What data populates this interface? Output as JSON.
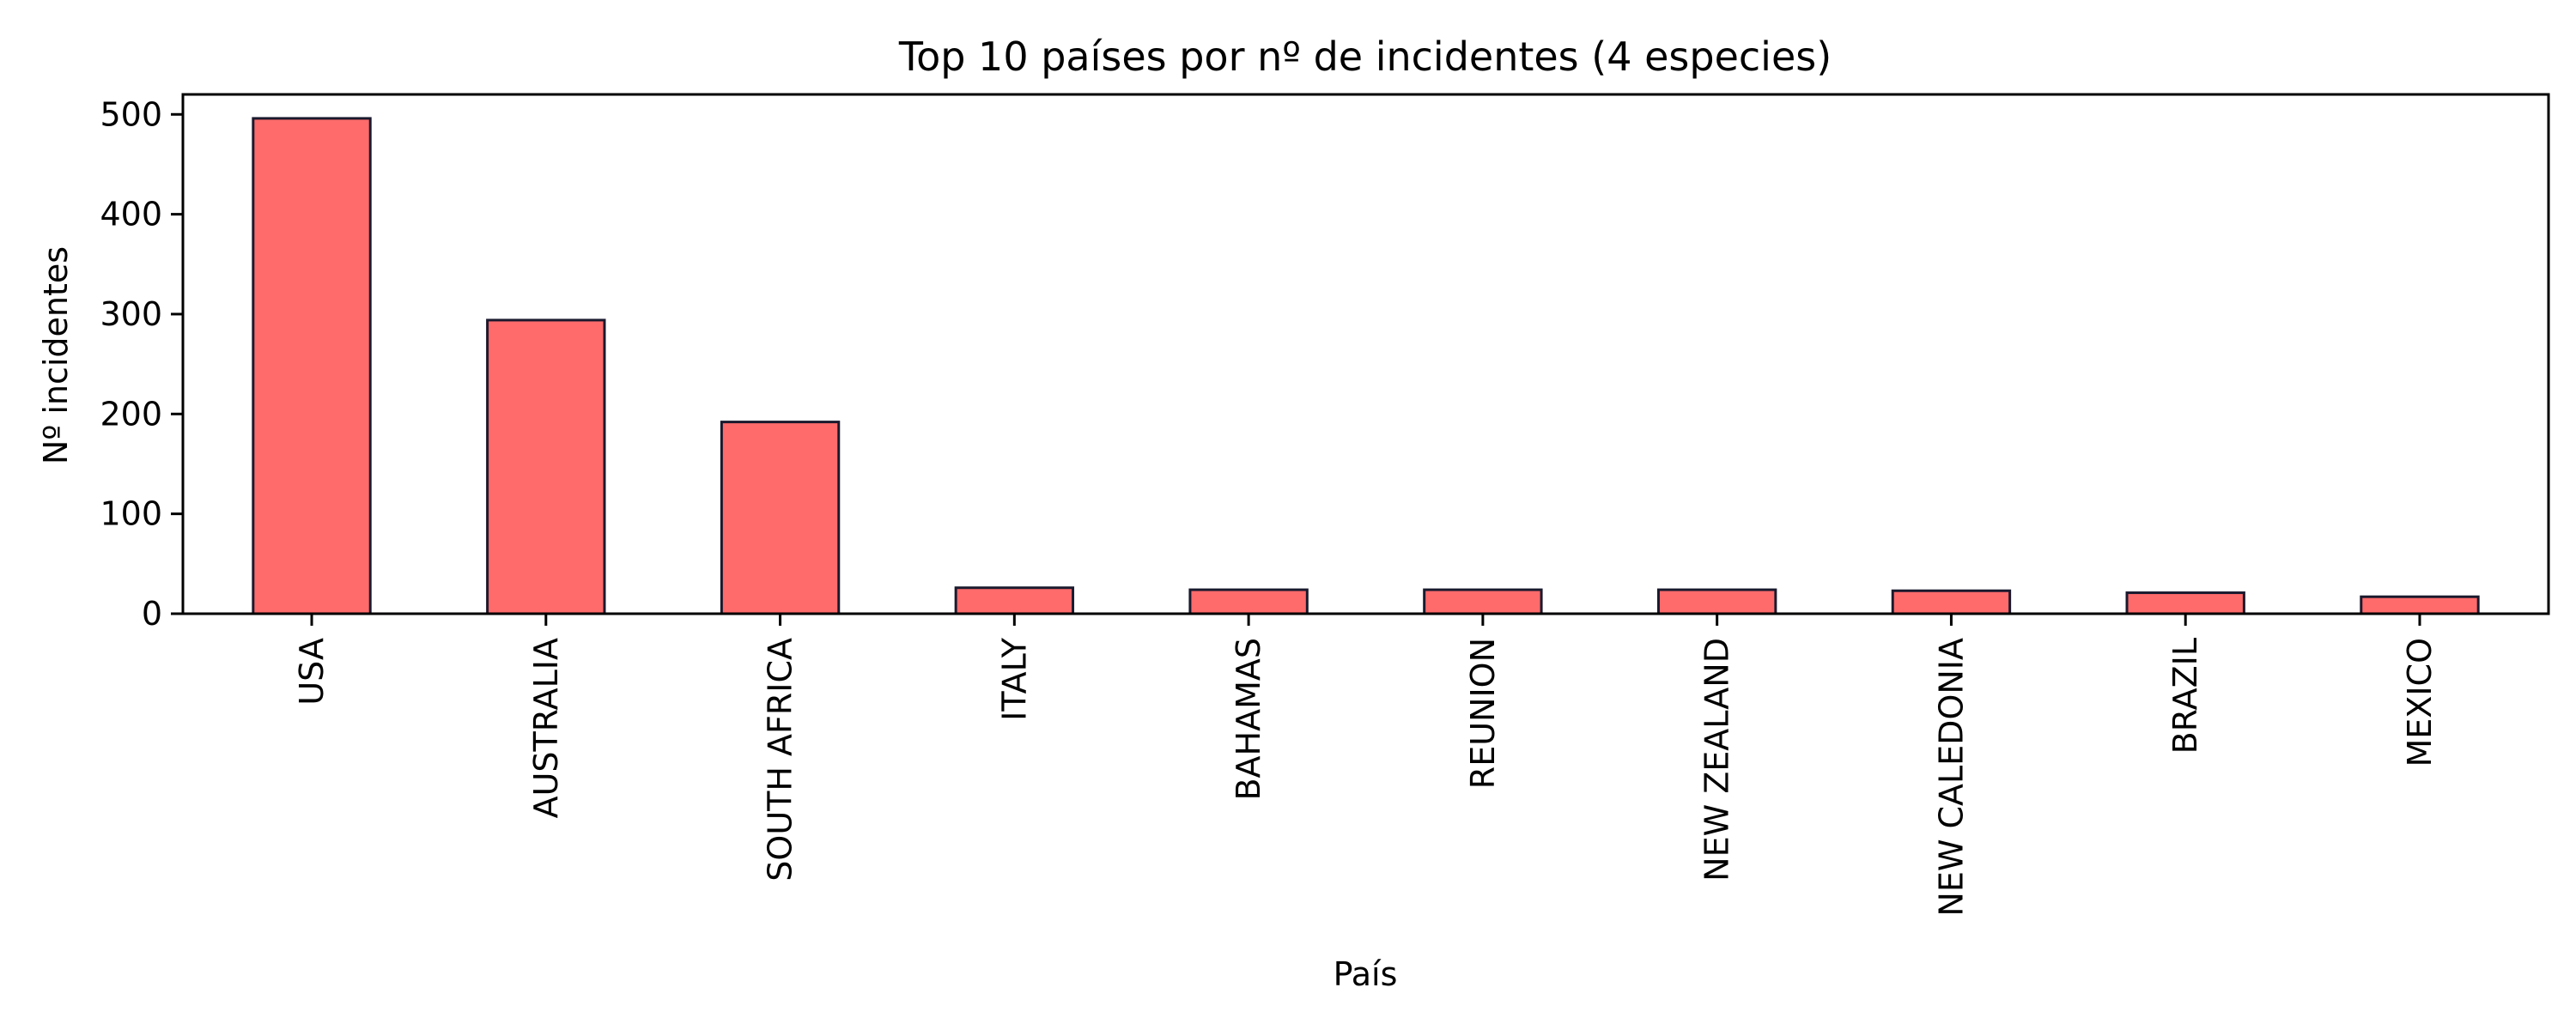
{
  "chart_data": {
    "type": "bar",
    "title": "Top 10 países por nº de incidentes (4 especies)",
    "xlabel": "País",
    "ylabel": "Nº incidentes",
    "categories": [
      "USA",
      "AUSTRALIA",
      "SOUTH AFRICA",
      "ITALY",
      "BAHAMAS",
      "REUNION",
      "NEW ZEALAND",
      "NEW CALEDONIA",
      "BRAZIL",
      "MEXICO"
    ],
    "values": [
      496,
      294,
      192,
      26,
      24,
      24,
      24,
      23,
      21,
      17
    ],
    "ylim": [
      0,
      520
    ],
    "yticks": [
      0,
      100,
      200,
      300,
      400,
      500
    ],
    "grid": false,
    "legend": "none",
    "colors": {
      "bar_fill": "#ff6b6b",
      "bar_edge": "#1a1a2e",
      "axis": "#000000"
    }
  }
}
